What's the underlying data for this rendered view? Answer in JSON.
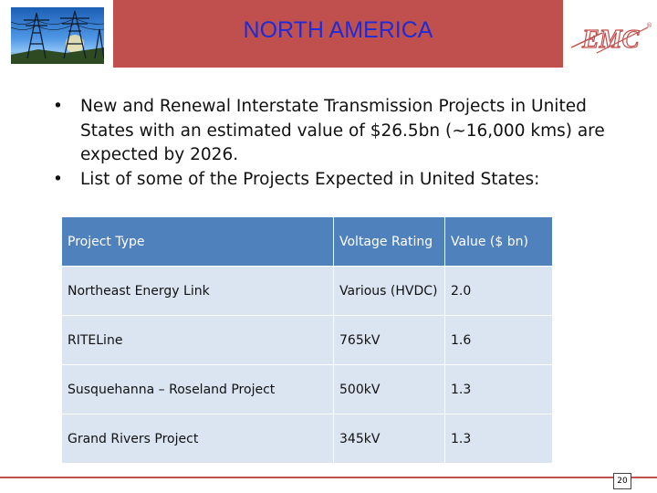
{
  "header": {
    "title": "NORTH AMERICA",
    "logo_text": "EMC",
    "logo_reg": "®",
    "title_color": "#1f2bd6",
    "bar_color": "#c0504d"
  },
  "bullets": [
    "New and Renewal Interstate Transmission Projects in United States with an estimated value of $26.5bn (~16,000 kms) are expected by 2026.",
    "List of some of the Projects Expected in United States:"
  ],
  "table": {
    "headers": [
      "Project Type",
      "Voltage Rating",
      "Value ($ bn)"
    ],
    "rows": [
      [
        "Northeast Energy Link",
        "Various (HVDC)",
        "2.0"
      ],
      [
        "RITELine",
        "765kV",
        "1.6"
      ],
      [
        "Susquehanna – Roseland Project",
        "500kV",
        "1.3"
      ],
      [
        "Grand Rivers Project",
        "345kV",
        "1.3"
      ]
    ],
    "header_color": "#4f81bd",
    "row_color": "#dbe5f1"
  },
  "footer": {
    "page_number": "20"
  }
}
